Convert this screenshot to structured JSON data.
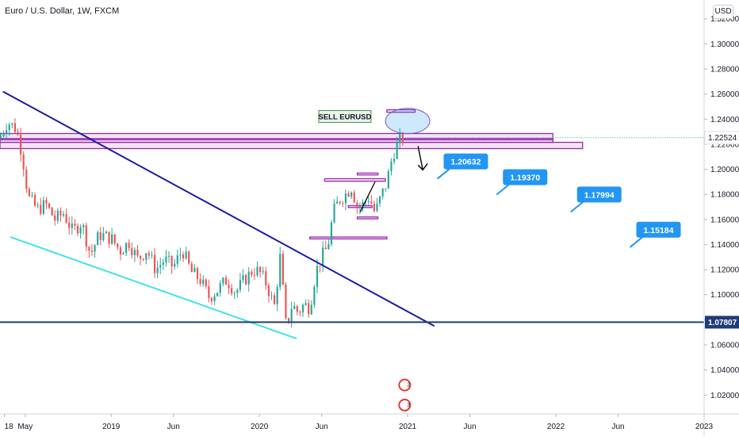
{
  "header": {
    "title": "Euro / U.S. Dollar, 1W, FXCM",
    "currency": "USD"
  },
  "chart_data": {
    "type": "candlestick",
    "symbol": "EURUSD",
    "timeframe": "1W",
    "broker": "FXCM",
    "y_axis": {
      "ticks": [
        1.32,
        1.3,
        1.28,
        1.26,
        1.24,
        1.22,
        1.2,
        1.18,
        1.16,
        1.14,
        1.12,
        1.1,
        1.08,
        1.06,
        1.04,
        1.02
      ],
      "tick_labels": [
        "1.32000",
        "1.30000",
        "1.28000",
        "1.26000",
        "1.24000",
        "1.22000",
        "1.20000",
        "1.18000",
        "1.16000",
        "1.14000",
        "1.12000",
        "1.10000",
        "1.08000",
        "1.06000",
        "1.04000",
        "1.02000"
      ],
      "range": [
        1.005,
        1.335
      ]
    },
    "x_axis": {
      "range": [
        2018.25,
        2023.0
      ],
      "ticks": [
        {
          "t": 2018.28,
          "label": "18"
        },
        {
          "t": 2018.42,
          "label": "May"
        },
        {
          "t": 2019.0,
          "label": "2019"
        },
        {
          "t": 2019.42,
          "label": "Jun"
        },
        {
          "t": 2020.0,
          "label": "2020"
        },
        {
          "t": 2020.42,
          "label": "Jun"
        },
        {
          "t": 2021.0,
          "label": "2021"
        },
        {
          "t": 2021.42,
          "label": "Jun"
        },
        {
          "t": 2022.0,
          "label": "2022"
        },
        {
          "t": 2022.42,
          "label": "Jun"
        },
        {
          "t": 2023.0,
          "label": "2023"
        }
      ]
    },
    "price_path": [
      [
        2018.25,
        1.225
      ],
      [
        2018.3,
        1.238
      ],
      [
        2018.36,
        1.232
      ],
      [
        2018.4,
        1.212
      ],
      [
        2018.44,
        1.178
      ],
      [
        2018.5,
        1.168
      ],
      [
        2018.56,
        1.172
      ],
      [
        2018.62,
        1.16
      ],
      [
        2018.68,
        1.165
      ],
      [
        2018.74,
        1.15
      ],
      [
        2018.8,
        1.158
      ],
      [
        2018.86,
        1.132
      ],
      [
        2018.92,
        1.148
      ],
      [
        2019.0,
        1.145
      ],
      [
        2019.06,
        1.135
      ],
      [
        2019.12,
        1.142
      ],
      [
        2019.18,
        1.128
      ],
      [
        2019.24,
        1.136
      ],
      [
        2019.3,
        1.12
      ],
      [
        2019.36,
        1.128
      ],
      [
        2019.42,
        1.122
      ],
      [
        2019.48,
        1.136
      ],
      [
        2019.54,
        1.118
      ],
      [
        2019.6,
        1.112
      ],
      [
        2019.66,
        1.098
      ],
      [
        2019.72,
        1.104
      ],
      [
        2019.78,
        1.112
      ],
      [
        2019.84,
        1.102
      ],
      [
        2019.9,
        1.112
      ],
      [
        2019.96,
        1.12
      ],
      [
        2020.0,
        1.118
      ],
      [
        2020.05,
        1.108
      ],
      [
        2020.1,
        1.09
      ],
      [
        2020.14,
        1.13
      ],
      [
        2020.18,
        1.074
      ],
      [
        2020.22,
        1.092
      ],
      [
        2020.26,
        1.086
      ],
      [
        2020.3,
        1.092
      ],
      [
        2020.34,
        1.09
      ],
      [
        2020.38,
        1.118
      ],
      [
        2020.42,
        1.13
      ],
      [
        2020.46,
        1.138
      ],
      [
        2020.5,
        1.166
      ],
      [
        2020.54,
        1.176
      ],
      [
        2020.58,
        1.18
      ],
      [
        2020.62,
        1.186
      ],
      [
        2020.66,
        1.17
      ],
      [
        2020.7,
        1.172
      ],
      [
        2020.74,
        1.178
      ],
      [
        2020.78,
        1.165
      ],
      [
        2020.82,
        1.178
      ],
      [
        2020.86,
        1.19
      ],
      [
        2020.9,
        1.212
      ],
      [
        2020.94,
        1.222
      ],
      [
        2020.98,
        1.2252
      ]
    ],
    "current_price": {
      "value": 1.22524,
      "label": "1.22524"
    },
    "horizontal_level": {
      "value": 1.07807,
      "label": "1.07807",
      "color": "#1e3c78"
    },
    "sell_label": "SELL EURUSD",
    "targets": [
      {
        "label": "1.20632",
        "t": 2021.2,
        "value": 1.2063
      },
      {
        "label": "1.19370",
        "t": 2021.6,
        "value": 1.1937
      },
      {
        "label": "1.17994",
        "t": 2022.1,
        "value": 1.1799
      },
      {
        "label": "1.15184",
        "t": 2022.5,
        "value": 1.1518
      }
    ],
    "zones": [
      {
        "t0": 2018.25,
        "t1": 2021.98,
        "y0": 1.2235,
        "y1": 1.2285
      },
      {
        "t0": 2018.25,
        "t1": 2021.98,
        "y0": 1.2215,
        "y1": 1.2245
      },
      {
        "t0": 2018.25,
        "t1": 2022.18,
        "y0": 1.2165,
        "y1": 1.2215
      },
      {
        "t0": 2020.86,
        "t1": 2021.05,
        "y0": 1.2455,
        "y1": 1.2475
      },
      {
        "t0": 2020.34,
        "t1": 2020.86,
        "y0": 1.1445,
        "y1": 1.146
      },
      {
        "t0": 2020.44,
        "t1": 2020.85,
        "y0": 1.1905,
        "y1": 1.1925
      },
      {
        "t0": 2020.66,
        "t1": 2020.8,
        "y0": 1.1955,
        "y1": 1.197
      },
      {
        "t0": 2020.6,
        "t1": 2020.76,
        "y0": 1.1695,
        "y1": 1.171
      },
      {
        "t0": 2020.66,
        "t1": 2020.8,
        "y0": 1.1605,
        "y1": 1.162
      }
    ],
    "trendlines": [
      {
        "t0": 2018.27,
        "v0": 1.262,
        "t1": 2021.18,
        "v1": 1.075,
        "color": "#1a1aa8"
      },
      {
        "t0": 2018.32,
        "v0": 1.146,
        "t1": 2020.25,
        "v1": 1.065,
        "color": "#3fe3e8"
      }
    ],
    "colors": {
      "up": "#26a69a",
      "down": "#ef5350",
      "zone": "#9c27b0",
      "target": "#2196f3"
    }
  }
}
